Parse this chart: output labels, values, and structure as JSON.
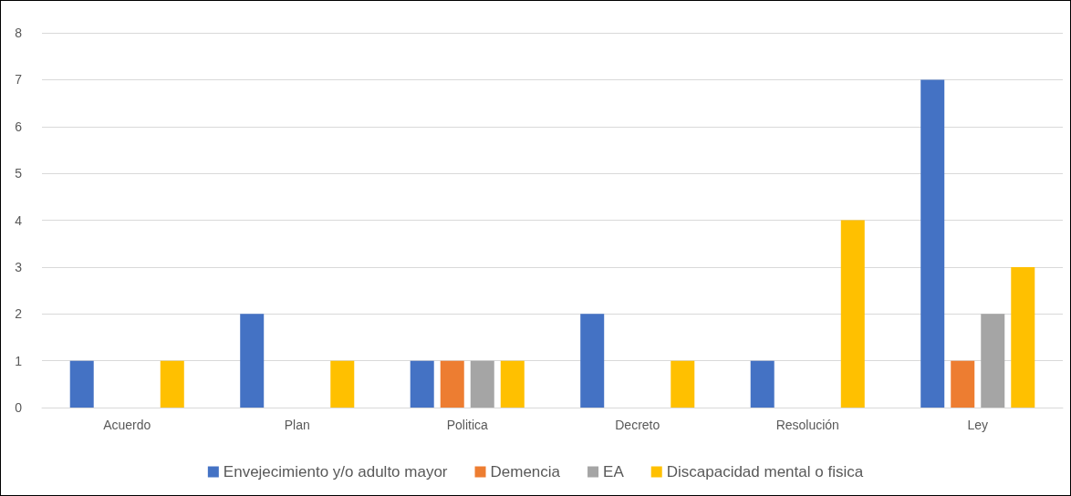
{
  "chart_data": {
    "type": "bar",
    "categories": [
      "Acuerdo",
      "Plan",
      "Politica",
      "Decreto",
      "Resolución",
      "Ley"
    ],
    "series": [
      {
        "name": "Envejecimiento y/o adulto mayor",
        "color": "#4472c4",
        "values": [
          1,
          2,
          1,
          2,
          1,
          7
        ]
      },
      {
        "name": "Demencia",
        "color": "#ed7d31",
        "values": [
          0,
          0,
          1,
          0,
          0,
          1
        ]
      },
      {
        "name": "EA",
        "color": "#a5a5a5",
        "values": [
          0,
          0,
          1,
          0,
          0,
          2
        ]
      },
      {
        "name": "Discapacidad mental o fisica",
        "color": "#ffc000",
        "values": [
          1,
          1,
          1,
          1,
          4,
          3
        ]
      }
    ],
    "ylim": [
      0,
      8
    ],
    "yticks": [
      0,
      1,
      2,
      3,
      4,
      5,
      6,
      7,
      8
    ],
    "grid": "y",
    "legend": "bottom"
  }
}
